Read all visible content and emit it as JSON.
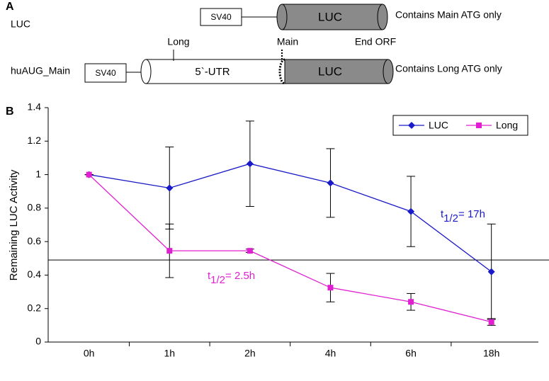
{
  "panel_a": {
    "label": "A",
    "rows": [
      {
        "name": "LUC",
        "promoter": "SV40",
        "gene": "LUC",
        "note": "Contains Main ATG only"
      },
      {
        "name": "huAUG_Main",
        "promoter": "SV40",
        "utr": "5`-UTR",
        "gene": "LUC",
        "note": "Contains Long ATG only",
        "markers": [
          "Long",
          "Main",
          "End ORF"
        ]
      }
    ]
  },
  "chart_data": {
    "type": "line",
    "panel_label": "B",
    "y_label": "Remaining LUC Activity",
    "categories": [
      "0h",
      "1h",
      "2h",
      "4h",
      "6h",
      "18h"
    ],
    "series": [
      {
        "name": "LUC",
        "color": "#1a1ac8",
        "marker": "diamond",
        "values": [
          1.0,
          0.92,
          1.065,
          0.95,
          0.78,
          0.42
        ],
        "errors": [
          0,
          0.245,
          0.255,
          0.205,
          0.21,
          0.285
        ]
      },
      {
        "name": "Long",
        "color": "#e020d0",
        "marker": "square",
        "values": [
          1.0,
          0.545,
          0.545,
          0.325,
          0.24,
          0.12
        ],
        "errors": [
          0,
          0.16,
          0.01,
          0.085,
          0.05,
          0.02
        ]
      }
    ],
    "reference_line": 0.49,
    "annotations": [
      {
        "t": "t",
        "sub": "1/2",
        "rest": "= 17h",
        "color": "#1a1ac8"
      },
      {
        "t": "t",
        "sub": "1/2",
        "rest": "= 2.5h",
        "color": "#e020d0"
      }
    ],
    "ylim": [
      0,
      1.4
    ],
    "yticks": [
      0,
      0.2,
      0.4,
      0.6,
      0.8,
      1,
      1.2,
      1.4
    ],
    "legend": "top-right"
  }
}
